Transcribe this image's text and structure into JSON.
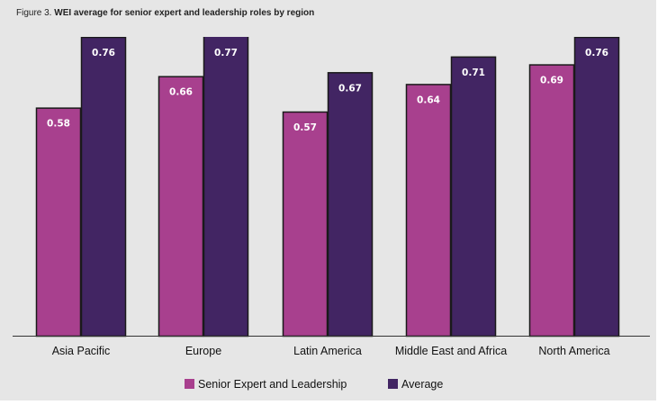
{
  "title": {
    "lead": "Figure 3. ",
    "main": "WEI average for senior expert and leadership roles by region"
  },
  "chart_data": {
    "type": "bar",
    "title": "Figure 3. WEI average for senior expert and leadership roles by region",
    "xlabel": "",
    "ylabel": "",
    "ylim": [
      0,
      0.76
    ],
    "grid": false,
    "legend_position": "bottom-center",
    "categories": [
      "Asia Pacific",
      "Europe",
      "Latin America",
      "Middle East and Africa",
      "North America"
    ],
    "series": [
      {
        "name": "Senior Expert and Leadership",
        "color": "#a8408e",
        "values": [
          0.58,
          0.66,
          0.57,
          0.64,
          0.69
        ],
        "labels": [
          "0.58",
          "0.66",
          "0.57",
          "0.64",
          "0.69"
        ]
      },
      {
        "name": "Average",
        "color": "#422563",
        "values": [
          0.76,
          0.77,
          0.67,
          0.71,
          0.76
        ],
        "labels": [
          "0.76",
          "0.77",
          "0.67",
          "0.71",
          "0.76"
        ]
      }
    ]
  }
}
